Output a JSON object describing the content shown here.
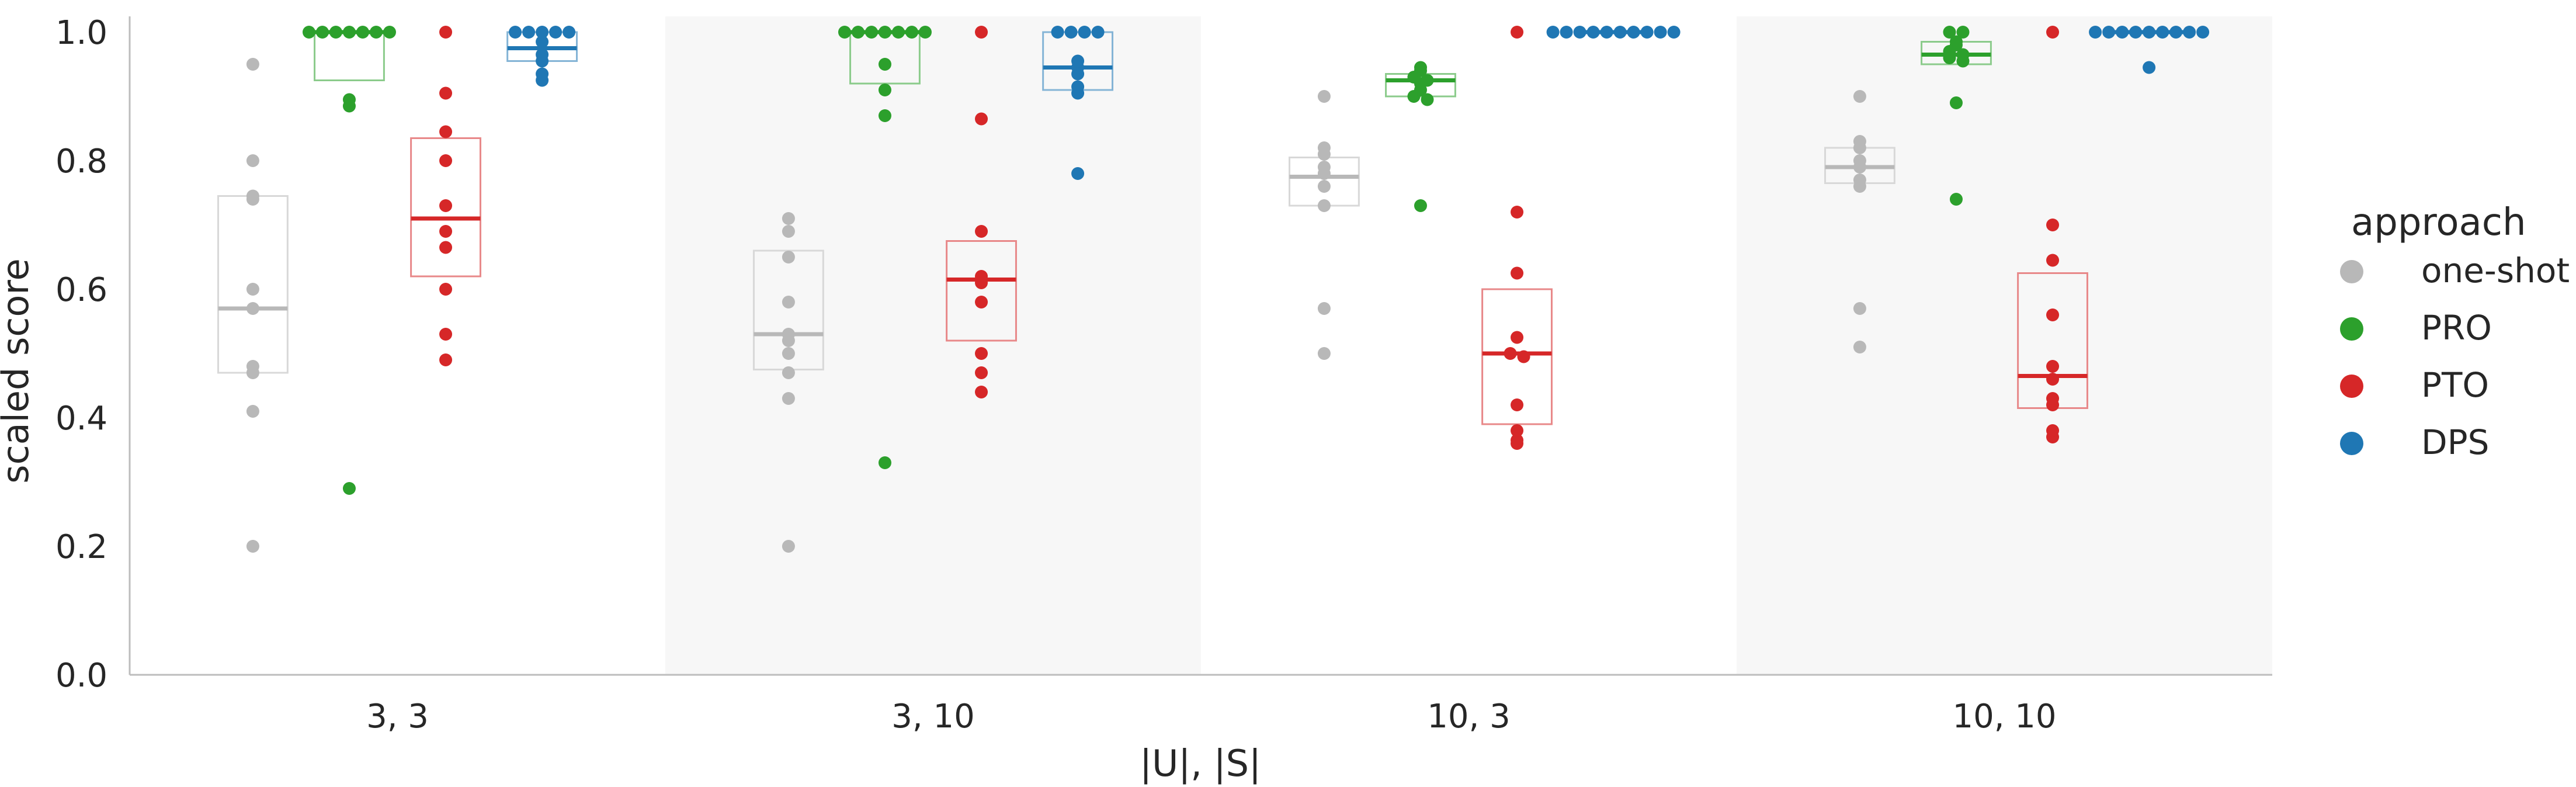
{
  "chart_data": {
    "type": "scatter",
    "ylabel": "scaled score",
    "xlabel": "|U|, |S|",
    "ylim": [
      0.0,
      1.05
    ],
    "yticks": [
      "0.0",
      "0.2",
      "0.4",
      "0.6",
      "0.8",
      "1.0"
    ],
    "categories": [
      "3, 3",
      "3, 10",
      "10, 3",
      "10, 10"
    ],
    "shaded_groups": [
      "3, 10",
      "10, 10"
    ],
    "legend": {
      "title": "approach",
      "placement": "right",
      "entries": [
        "one-shot",
        "PRO",
        "PTO",
        "DPS"
      ]
    },
    "series": [
      {
        "name": "one-shot",
        "color": "#b8b8b8",
        "groups": [
          {
            "points": [
              0.95,
              0.8,
              0.745,
              0.74,
              0.6,
              0.57,
              0.48,
              0.47,
              0.41,
              0.2
            ],
            "q1": 0.47,
            "median": 0.57,
            "q3": 0.745
          },
          {
            "points": [
              0.71,
              0.69,
              0.65,
              0.58,
              0.53,
              0.52,
              0.5,
              0.47,
              0.43,
              0.2
            ],
            "q1": 0.475,
            "median": 0.53,
            "q3": 0.66
          },
          {
            "points": [
              0.9,
              0.82,
              0.81,
              0.79,
              0.78,
              0.76,
              0.73,
              0.57,
              0.5
            ],
            "q1": 0.73,
            "median": 0.775,
            "q3": 0.805
          },
          {
            "points": [
              0.9,
              0.83,
              0.82,
              0.8,
              0.79,
              0.77,
              0.76,
              0.57,
              0.51
            ],
            "q1": 0.765,
            "median": 0.79,
            "q3": 0.82
          }
        ]
      },
      {
        "name": "PRO",
        "color": "#2ca02c",
        "groups": [
          {
            "points": [
              1.0,
              1.0,
              1.0,
              1.0,
              1.0,
              1.0,
              1.0,
              0.895,
              0.885,
              0.29
            ],
            "q1": 0.925,
            "median": 1.0,
            "q3": 1.0
          },
          {
            "points": [
              1.0,
              1.0,
              1.0,
              1.0,
              1.0,
              1.0,
              1.0,
              0.95,
              0.91,
              0.87,
              0.33
            ],
            "q1": 0.92,
            "median": 1.0,
            "q3": 1.0
          },
          {
            "points": [
              0.945,
              0.94,
              0.93,
              0.925,
              0.92,
              0.91,
              0.9,
              0.895,
              0.73
            ],
            "q1": 0.9,
            "median": 0.925,
            "q3": 0.935
          },
          {
            "points": [
              1.0,
              1.0,
              0.985,
              0.98,
              0.97,
              0.965,
              0.96,
              0.955,
              0.89,
              0.74
            ],
            "q1": 0.95,
            "median": 0.965,
            "q3": 0.985
          }
        ]
      },
      {
        "name": "PTO",
        "color": "#d62728",
        "groups": [
          {
            "points": [
              1.0,
              0.905,
              0.845,
              0.8,
              0.73,
              0.69,
              0.665,
              0.6,
              0.53,
              0.49
            ],
            "q1": 0.62,
            "median": 0.71,
            "q3": 0.835
          },
          {
            "points": [
              1.0,
              0.865,
              0.69,
              0.62,
              0.61,
              0.58,
              0.5,
              0.47,
              0.44
            ],
            "q1": 0.52,
            "median": 0.615,
            "q3": 0.675
          },
          {
            "points": [
              1.0,
              0.72,
              0.625,
              0.525,
              0.5,
              0.495,
              0.42,
              0.38,
              0.365,
              0.36
            ],
            "q1": 0.39,
            "median": 0.5,
            "q3": 0.6
          },
          {
            "points": [
              1.0,
              0.7,
              0.645,
              0.56,
              0.48,
              0.46,
              0.43,
              0.42,
              0.38,
              0.37
            ],
            "q1": 0.415,
            "median": 0.465,
            "q3": 0.625
          }
        ]
      },
      {
        "name": "DPS",
        "color": "#1f77b4",
        "groups": [
          {
            "points": [
              1.0,
              1.0,
              1.0,
              1.0,
              1.0,
              0.985,
              0.965,
              0.955,
              0.935,
              0.925
            ],
            "q1": 0.955,
            "median": 0.975,
            "q3": 1.0
          },
          {
            "points": [
              1.0,
              1.0,
              1.0,
              1.0,
              0.955,
              0.945,
              0.935,
              0.915,
              0.905,
              0.78
            ],
            "q1": 0.91,
            "median": 0.945,
            "q3": 1.0
          },
          {
            "points": [
              1.0,
              1.0,
              1.0,
              1.0,
              1.0,
              1.0,
              1.0,
              1.0,
              1.0,
              1.0
            ],
            "q1": 1.0,
            "median": 1.0,
            "q3": 1.0
          },
          {
            "points": [
              1.0,
              1.0,
              1.0,
              1.0,
              1.0,
              1.0,
              1.0,
              1.0,
              1.0,
              0.945
            ],
            "q1": 1.0,
            "median": 1.0,
            "q3": 1.0
          }
        ]
      }
    ]
  }
}
